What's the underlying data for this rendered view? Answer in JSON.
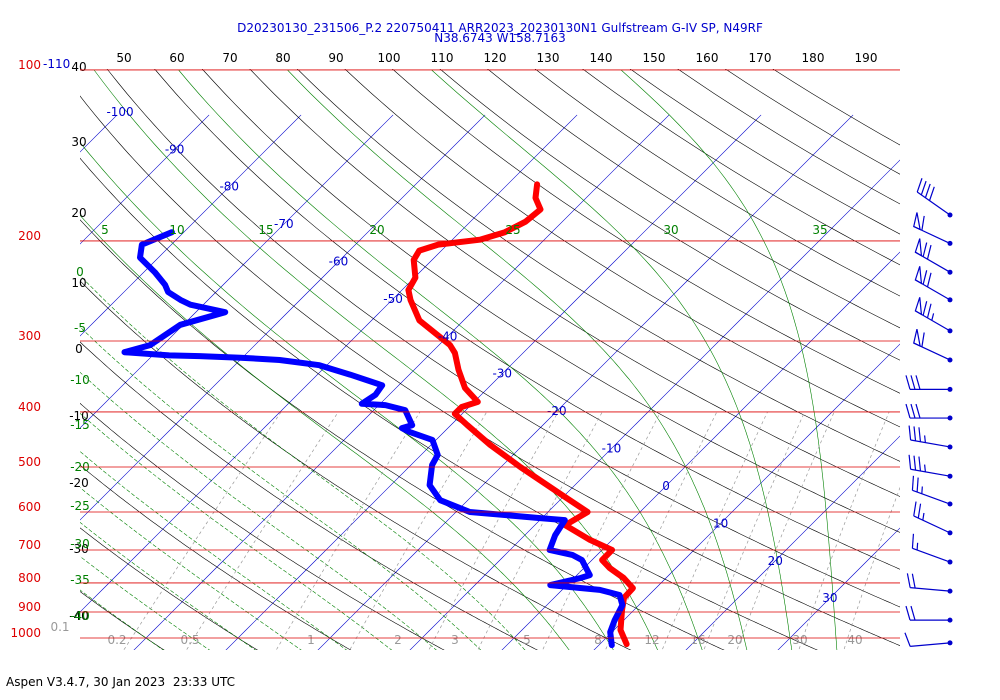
{
  "chart_data": {
    "type": "skewt",
    "title": "D20230130_231506_P.2 220750411 ARR2023_20230130N1 Gulfstream G-IV SP, N49RF",
    "subtitle": "N38.6743 W158.7163",
    "footer": "Aspen V3.4.7, 30 Jan 2023  23:33 UTC",
    "log_scale": true,
    "ylim": [
      1030,
      100
    ],
    "yticks": [
      100,
      200,
      300,
      400,
      500,
      600,
      700,
      800,
      900,
      1000
    ],
    "isotherms": [
      -110,
      -100,
      -90,
      -80,
      -70,
      -60,
      -50,
      -40,
      -30,
      -20,
      -10,
      0,
      10,
      20,
      30
    ],
    "dry_adiabats_top": [
      50,
      60,
      70,
      80,
      90,
      100,
      110,
      120,
      130,
      140,
      150,
      160,
      170,
      180,
      190
    ],
    "dry_adiabats_left": [
      40,
      30,
      20,
      10,
      0,
      -10,
      -20,
      -30,
      -40
    ],
    "moist_adiabats_top": [
      5,
      10,
      15,
      20,
      25,
      30,
      35
    ],
    "moist_adiabats_left": [
      0,
      -5,
      -10,
      -15,
      -20,
      -25,
      -30,
      -35,
      -40
    ],
    "mixing_ratios": [
      0.1,
      0.2,
      0.5,
      1,
      2,
      3,
      5,
      8,
      12,
      16,
      20,
      30,
      40
    ],
    "series": [
      {
        "color": "#ff0000",
        "pressure": [
          1025,
          968,
          893,
          850,
          817,
          784,
          753,
          729,
          700,
          672,
          633,
          600,
          556,
          500,
          457,
          422,
          403,
          392,
          384,
          363,
          337,
          315,
          305,
          276,
          254,
          244,
          232,
          216,
          208,
          203,
          199,
          193,
          185,
          176,
          168,
          159
        ],
        "values": [
          12.9,
          10.7,
          8.7,
          7.6,
          7.5,
          5.4,
          2.8,
          1.1,
          1.1,
          -2.4,
          -6.7,
          -5.7,
          -10.8,
          -17.9,
          -23.6,
          -28.2,
          -30.8,
          -30.8,
          -29.6,
          -32.5,
          -35.2,
          -37.4,
          -38.8,
          -44.8,
          -48.0,
          -49.3,
          -49.9,
          -52.0,
          -52.4,
          -51.0,
          -47.0,
          -45.1,
          -44.0,
          -43.7,
          -45.5,
          -46.8
        ]
      },
      {
        "color": "#0000ff",
        "pressure": [
          1029,
          976,
          930,
          875,
          840,
          823,
          807,
          784,
          775,
          729,
          714,
          700,
          659,
          620,
          615,
          600,
          572,
          538,
          496,
          476,
          448,
          434,
          427,
          422,
          397,
          389,
          387,
          373,
          359,
          344,
          331,
          324,
          321,
          319,
          318,
          314,
          305,
          281,
          267,
          259,
          254,
          246,
          239,
          227,
          214,
          203,
          193
        ],
        "values": [
          11.4,
          9.8,
          9.0,
          8.2,
          6.8,
          4.1,
          -1.8,
          0.7,
          1.4,
          -1.1,
          -2.7,
          -5.7,
          -6.7,
          -7.3,
          -10.2,
          -18.5,
          -23.0,
          -25.8,
          -27.7,
          -28.2,
          -30.4,
          -33.7,
          -35.0,
          -34.2,
          -36.6,
          -39.3,
          -42.0,
          -41.5,
          -41.8,
          -46.4,
          -50.8,
          -55.7,
          -60.2,
          -64.8,
          -68.2,
          -73.4,
          -71.4,
          -70.3,
          -66.8,
          -71.4,
          -73.0,
          -75.2,
          -76.3,
          -78.8,
          -82.0,
          -83.2,
          -81.3
        ]
      }
    ],
    "wind": {
      "pressure": [
        180,
        202,
        227,
        254,
        288,
        324,
        365,
        410,
        461,
        519,
        581,
        653,
        735,
        827,
        930,
        1020
      ],
      "speed": [
        40,
        60,
        70,
        70,
        75,
        60,
        30,
        30,
        35,
        35,
        25,
        25,
        15,
        20,
        20,
        10
      ],
      "direction": [
        305,
        295,
        300,
        300,
        300,
        295,
        270,
        270,
        280,
        280,
        290,
        295,
        290,
        275,
        270,
        265
      ]
    }
  }
}
